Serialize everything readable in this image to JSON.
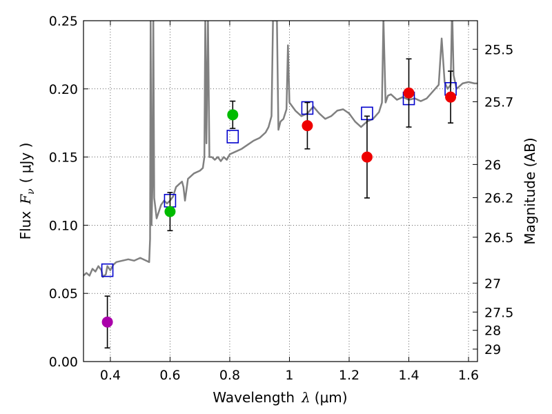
{
  "chart_data": {
    "type": "scatter",
    "xlabel": {
      "prefix": "Wavelength",
      "math": "λ",
      "unit": "(μm)"
    },
    "ylabel": {
      "prefix": "Flux",
      "math": "F",
      "math_sub": "ν",
      "unit": "( μJy )"
    },
    "y2label": "Magnitude (AB)",
    "xlim": [
      0.31,
      1.63
    ],
    "ylim": [
      0.0,
      0.25
    ],
    "grid": true,
    "x_ticks": [
      {
        "v": 0.4,
        "label": "0.4"
      },
      {
        "v": 0.6,
        "label": "0.6"
      },
      {
        "v": 0.8,
        "label": "0.8"
      },
      {
        "v": 1.0,
        "label": "1"
      },
      {
        "v": 1.2,
        "label": "1.2"
      },
      {
        "v": 1.4,
        "label": "1.4"
      },
      {
        "v": 1.6,
        "label": "1.6"
      }
    ],
    "y_ticks": [
      {
        "v": 0.0,
        "label": "0.00"
      },
      {
        "v": 0.05,
        "label": "0.05"
      },
      {
        "v": 0.1,
        "label": "0.10"
      },
      {
        "v": 0.15,
        "label": "0.15"
      },
      {
        "v": 0.2,
        "label": "0.20"
      },
      {
        "v": 0.25,
        "label": "0.25"
      }
    ],
    "y2_ticks": [
      {
        "mag": 25.5,
        "label": "25.5"
      },
      {
        "mag": 25.7,
        "label": "25.7"
      },
      {
        "mag": 26,
        "label": "26"
      },
      {
        "mag": 26.2,
        "label": "26.2"
      },
      {
        "mag": 26.5,
        "label": "26.5"
      },
      {
        "mag": 27,
        "label": "27"
      },
      {
        "mag": 27.5,
        "label": "27.5"
      },
      {
        "mag": 28,
        "label": "28"
      },
      {
        "mag": 29,
        "label": "29"
      }
    ],
    "template_spectrum": {
      "color": "#808080",
      "points": [
        [
          0.31,
          0.063
        ],
        [
          0.32,
          0.065
        ],
        [
          0.33,
          0.063
        ],
        [
          0.34,
          0.068
        ],
        [
          0.35,
          0.066
        ],
        [
          0.36,
          0.07
        ],
        [
          0.37,
          0.067
        ],
        [
          0.375,
          0.062
        ],
        [
          0.385,
          0.064
        ],
        [
          0.39,
          0.07
        ],
        [
          0.4,
          0.067
        ],
        [
          0.41,
          0.071
        ],
        [
          0.42,
          0.073
        ],
        [
          0.44,
          0.074
        ],
        [
          0.46,
          0.075
        ],
        [
          0.48,
          0.074
        ],
        [
          0.5,
          0.076
        ],
        [
          0.52,
          0.074
        ],
        [
          0.53,
          0.073
        ],
        [
          0.533,
          0.09
        ],
        [
          0.535,
          0.252
        ],
        [
          0.538,
          0.1
        ],
        [
          0.541,
          0.128
        ],
        [
          0.544,
          0.252
        ],
        [
          0.547,
          0.12
        ],
        [
          0.555,
          0.105
        ],
        [
          0.57,
          0.115
        ],
        [
          0.58,
          0.118
        ],
        [
          0.59,
          0.116
        ],
        [
          0.6,
          0.118
        ],
        [
          0.61,
          0.121
        ],
        [
          0.62,
          0.128
        ],
        [
          0.63,
          0.13
        ],
        [
          0.64,
          0.132
        ],
        [
          0.645,
          0.128
        ],
        [
          0.65,
          0.118
        ],
        [
          0.66,
          0.134
        ],
        [
          0.68,
          0.138
        ],
        [
          0.7,
          0.14
        ],
        [
          0.71,
          0.142
        ],
        [
          0.715,
          0.15
        ],
        [
          0.718,
          0.252
        ],
        [
          0.722,
          0.16
        ],
        [
          0.727,
          0.252
        ],
        [
          0.732,
          0.15
        ],
        [
          0.74,
          0.15
        ],
        [
          0.75,
          0.148
        ],
        [
          0.76,
          0.15
        ],
        [
          0.77,
          0.147
        ],
        [
          0.78,
          0.15
        ],
        [
          0.79,
          0.148
        ],
        [
          0.8,
          0.152
        ],
        [
          0.82,
          0.154
        ],
        [
          0.84,
          0.156
        ],
        [
          0.86,
          0.159
        ],
        [
          0.88,
          0.162
        ],
        [
          0.9,
          0.164
        ],
        [
          0.92,
          0.168
        ],
        [
          0.93,
          0.172
        ],
        [
          0.94,
          0.18
        ],
        [
          0.945,
          0.252
        ],
        [
          0.952,
          0.25
        ],
        [
          0.958,
          0.252
        ],
        [
          0.963,
          0.17
        ],
        [
          0.97,
          0.176
        ],
        [
          0.98,
          0.178
        ],
        [
          0.99,
          0.185
        ],
        [
          0.995,
          0.232
        ],
        [
          1.0,
          0.19
        ],
        [
          1.02,
          0.184
        ],
        [
          1.04,
          0.18
        ],
        [
          1.06,
          0.182
        ],
        [
          1.08,
          0.187
        ],
        [
          1.1,
          0.182
        ],
        [
          1.12,
          0.178
        ],
        [
          1.14,
          0.18
        ],
        [
          1.16,
          0.184
        ],
        [
          1.18,
          0.185
        ],
        [
          1.2,
          0.182
        ],
        [
          1.22,
          0.176
        ],
        [
          1.24,
          0.172
        ],
        [
          1.26,
          0.176
        ],
        [
          1.28,
          0.178
        ],
        [
          1.3,
          0.183
        ],
        [
          1.31,
          0.19
        ],
        [
          1.315,
          0.252
        ],
        [
          1.322,
          0.19
        ],
        [
          1.33,
          0.195
        ],
        [
          1.34,
          0.196
        ],
        [
          1.36,
          0.192
        ],
        [
          1.38,
          0.194
        ],
        [
          1.4,
          0.192
        ],
        [
          1.42,
          0.193
        ],
        [
          1.44,
          0.191
        ],
        [
          1.46,
          0.193
        ],
        [
          1.48,
          0.198
        ],
        [
          1.5,
          0.203
        ],
        [
          1.51,
          0.237
        ],
        [
          1.52,
          0.205
        ],
        [
          1.53,
          0.2
        ],
        [
          1.54,
          0.203
        ],
        [
          1.545,
          0.26
        ],
        [
          1.55,
          0.21
        ],
        [
          1.56,
          0.2
        ],
        [
          1.58,
          0.204
        ],
        [
          1.6,
          0.205
        ],
        [
          1.62,
          0.204
        ],
        [
          1.63,
          0.204
        ]
      ]
    },
    "model_points": {
      "color": "#0000cc",
      "points": [
        [
          0.39,
          0.067
        ],
        [
          0.6,
          0.118
        ],
        [
          0.81,
          0.165
        ],
        [
          1.06,
          0.186
        ],
        [
          1.26,
          0.182
        ],
        [
          1.4,
          0.193
        ],
        [
          1.54,
          0.2
        ]
      ]
    },
    "observations": [
      {
        "x": 0.39,
        "y": 0.029,
        "err": 0.019,
        "color": "#aa00aa"
      },
      {
        "x": 0.6,
        "y": 0.11,
        "err": 0.014,
        "color": "#00bb00"
      },
      {
        "x": 0.81,
        "y": 0.181,
        "err": 0.01,
        "color": "#00bb00"
      },
      {
        "x": 1.06,
        "y": 0.173,
        "err": 0.017,
        "color": "#ee0000"
      },
      {
        "x": 1.26,
        "y": 0.15,
        "err": 0.03,
        "color": "#ee0000"
      },
      {
        "x": 1.4,
        "y": 0.197,
        "err": 0.025,
        "color": "#ee0000"
      },
      {
        "x": 1.54,
        "y": 0.194,
        "err": 0.019,
        "color": "#ee0000"
      }
    ]
  }
}
